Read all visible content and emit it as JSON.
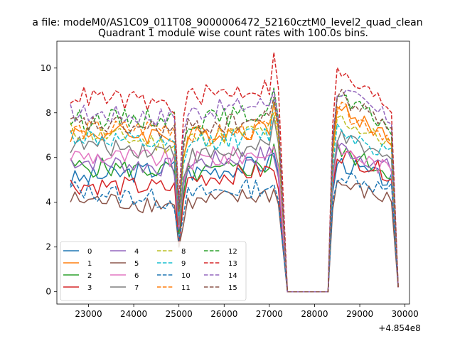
{
  "chart_data": {
    "type": "line",
    "suptitle": "a file: modeM0/AS1C09_011T08_9000006472_52160cztM0_level2_quad_clean",
    "title": "Quadrant 1 module wise count rates with 100.0s bins.",
    "xlabel": "",
    "ylabel": "",
    "x_offset_label": "+4.854e8",
    "xlim": [
      22300,
      30100
    ],
    "ylim": [
      -0.55,
      11.2
    ],
    "xticks": [
      23000,
      24000,
      25000,
      26000,
      27000,
      28000,
      29000,
      30000
    ],
    "xtick_labels": [
      "23000",
      "24000",
      "25000",
      "26000",
      "27000",
      "28000",
      "29000",
      "30000"
    ],
    "yticks": [
      0,
      2,
      4,
      6,
      8,
      10
    ],
    "ytick_labels": [
      "0",
      "2",
      "4",
      "6",
      "8",
      "10"
    ],
    "grid": false,
    "legend": {
      "placement": "lower-left",
      "columns": 4
    },
    "x": {
      "segment1": {
        "start": 22600,
        "step": 100,
        "count": 25
      },
      "segment2": {
        "start": 25100,
        "step": 100,
        "count": 22
      },
      "gap": [
        27400,
        27500,
        28300
      ],
      "segment3": {
        "start": 28400,
        "step": 100,
        "count": 14
      },
      "end": [
        29850
      ]
    },
    "series": [
      {
        "name": "0",
        "color": "#1f77b4",
        "dash": "solid",
        "base": [
          5.0,
          5.6,
          5.3
        ],
        "dip": 2.0,
        "peak": 6.2,
        "post": 5.9,
        "end": 0.2
      },
      {
        "name": "1",
        "color": "#ff7f0e",
        "dash": "solid",
        "base": [
          7.1,
          7.0,
          6.9
        ],
        "dip": 3.8,
        "peak": 8.5,
        "post": 8.3,
        "end": 0.2
      },
      {
        "name": "2",
        "color": "#2ca02c",
        "dash": "solid",
        "base": [
          5.6,
          5.4,
          5.2
        ],
        "dip": 2.6,
        "peak": 6.6,
        "post": 6.4,
        "end": 0.2
      },
      {
        "name": "3",
        "color": "#d62728",
        "dash": "solid",
        "base": [
          4.8,
          4.6,
          5.0
        ],
        "dip": 2.0,
        "peak": 5.4,
        "post": 6.3,
        "end": 0.2
      },
      {
        "name": "4",
        "color": "#9467bd",
        "dash": "solid",
        "base": [
          5.9,
          5.5,
          5.7
        ],
        "dip": 2.8,
        "peak": 6.0,
        "post": 6.6,
        "end": 0.2
      },
      {
        "name": "5",
        "color": "#8c564b",
        "dash": "solid",
        "base": [
          4.1,
          3.9,
          3.9
        ],
        "dip": 2.0,
        "peak": 4.6,
        "post": 4.9,
        "end": 0.2
      },
      {
        "name": "6",
        "color": "#e377c2",
        "dash": "solid",
        "base": [
          6.1,
          5.9,
          5.8
        ],
        "dip": 2.9,
        "peak": 6.5,
        "post": 6.5,
        "end": 0.2
      },
      {
        "name": "7",
        "color": "#7f7f7f",
        "dash": "solid",
        "base": [
          6.6,
          6.3,
          6.0
        ],
        "dip": 3.0,
        "peak": 7.8,
        "post": 7.0,
        "end": 0.2
      },
      {
        "name": "8",
        "color": "#bcbd22",
        "dash": "dashed",
        "base": [
          7.2,
          6.5,
          6.8
        ],
        "dip": 3.5,
        "peak": 8.0,
        "post": 7.9,
        "end": 0.2
      },
      {
        "name": "9",
        "color": "#17becf",
        "dash": "dashed",
        "base": [
          7.0,
          6.4,
          6.6
        ],
        "dip": 3.4,
        "peak": 8.6,
        "post": 7.4,
        "end": 0.2
      },
      {
        "name": "10",
        "color": "#1f77b4",
        "dash": "dashed",
        "base": [
          4.6,
          4.0,
          4.3
        ],
        "dip": 2.3,
        "peak": 4.8,
        "post": 5.4,
        "end": 0.2
      },
      {
        "name": "11",
        "color": "#ff7f0e",
        "dash": "dashed",
        "base": [
          7.2,
          7.4,
          6.9
        ],
        "dip": 3.6,
        "peak": 8.4,
        "post": 8.3,
        "end": 0.2
      },
      {
        "name": "12",
        "color": "#2ca02c",
        "dash": "dashed",
        "base": [
          7.7,
          7.8,
          7.6
        ],
        "dip": 3.7,
        "peak": 9.1,
        "post": 8.8,
        "end": 0.2
      },
      {
        "name": "13",
        "color": "#d62728",
        "dash": "dashed",
        "base": [
          8.8,
          8.3,
          8.7
        ],
        "dip": 4.1,
        "peak": 10.7,
        "post": 9.9,
        "end": 0.2
      },
      {
        "name": "14",
        "color": "#9467bd",
        "dash": "dashed",
        "base": [
          8.0,
          7.8,
          8.0
        ],
        "dip": 3.9,
        "peak": 9.0,
        "post": 9.2,
        "end": 0.2
      },
      {
        "name": "15",
        "color": "#8c564b",
        "dash": "dashed",
        "base": [
          7.5,
          7.2,
          7.3
        ],
        "dip": 3.6,
        "peak": 8.7,
        "post": 8.9,
        "end": 0.2
      }
    ]
  }
}
